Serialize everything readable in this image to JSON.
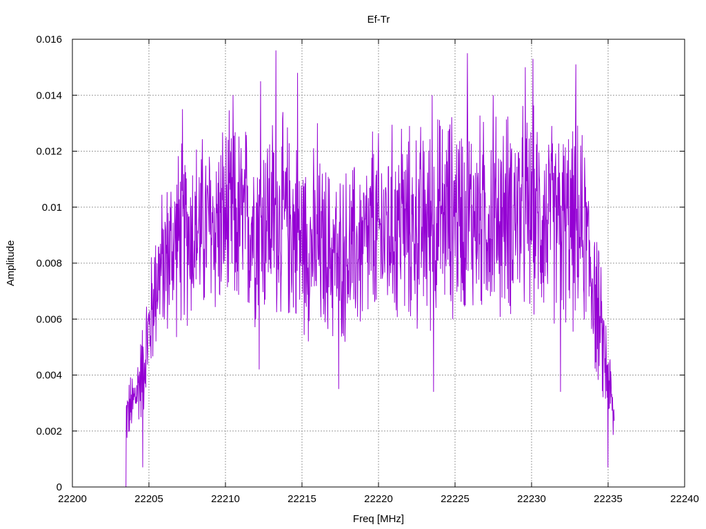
{
  "chart_data": {
    "type": "line",
    "title": "Ef-Tr",
    "xlabel": "Freq [MHz]",
    "ylabel": "Amplitude",
    "xlim": [
      22200,
      22240
    ],
    "ylim": [
      0,
      0.016
    ],
    "x_ticks": [
      "22200",
      "22205",
      "22210",
      "22215",
      "22220",
      "22225",
      "22230",
      "22235",
      "22240"
    ],
    "y_ticks": [
      "0",
      "0.002",
      "0.004",
      "0.006",
      "0.008",
      "0.01",
      "0.012",
      "0.014",
      "0.016"
    ],
    "grid": true,
    "legend": false,
    "series": [
      {
        "color": "#9400d3",
        "envelope_x": [
          22203.5,
          22204.0,
          22204.5,
          22205.0,
          22205.5,
          22206.0,
          22206.5,
          22207.0,
          22208.0,
          22209.0,
          22210.0,
          22211.0,
          22212.0,
          22213.0,
          22214.0,
          22215.0,
          22216.0,
          22217.0,
          22218.0,
          22219.0,
          22220.0,
          22221.0,
          22222.0,
          22223.0,
          22224.0,
          22225.0,
          22226.0,
          22227.0,
          22228.0,
          22229.0,
          22230.0,
          22231.0,
          22232.0,
          22233.0,
          22233.5,
          22234.0,
          22234.5,
          22235.0,
          22235.4
        ],
        "envelope_center": [
          0.0025,
          0.003,
          0.004,
          0.0055,
          0.0075,
          0.008,
          0.0085,
          0.009,
          0.0092,
          0.0093,
          0.0095,
          0.0094,
          0.0095,
          0.0097,
          0.0095,
          0.0088,
          0.0085,
          0.0083,
          0.0083,
          0.0086,
          0.009,
          0.0093,
          0.0092,
          0.0093,
          0.0096,
          0.0098,
          0.0097,
          0.0096,
          0.0097,
          0.0099,
          0.0097,
          0.0095,
          0.0094,
          0.0092,
          0.009,
          0.0075,
          0.0055,
          0.004,
          0.0022
        ],
        "envelope_spread": [
          0.001,
          0.0012,
          0.0015,
          0.002,
          0.0022,
          0.0025,
          0.0028,
          0.003,
          0.003,
          0.003,
          0.0032,
          0.0032,
          0.0033,
          0.0033,
          0.0032,
          0.003,
          0.003,
          0.0028,
          0.0028,
          0.003,
          0.0032,
          0.0032,
          0.0032,
          0.0033,
          0.0033,
          0.0033,
          0.0033,
          0.0032,
          0.0033,
          0.0033,
          0.0033,
          0.0032,
          0.0032,
          0.0033,
          0.003,
          0.0028,
          0.0022,
          0.0015,
          0.001
        ],
        "peaks": [
          [
            22203.5,
            0.0
          ],
          [
            22207.2,
            0.0135
          ],
          [
            22210.5,
            0.014
          ],
          [
            22212.3,
            0.0145
          ],
          [
            22213.3,
            0.0156
          ],
          [
            22214.7,
            0.0148
          ],
          [
            22216.0,
            0.013
          ],
          [
            22219.6,
            0.0127
          ],
          [
            22221.5,
            0.0128
          ],
          [
            22223.5,
            0.014
          ],
          [
            22225.8,
            0.0155
          ],
          [
            22227.5,
            0.014
          ],
          [
            22229.6,
            0.015
          ],
          [
            22230.1,
            0.0153
          ],
          [
            22232.9,
            0.0151
          ],
          [
            22204.6,
            0.0007
          ],
          [
            22212.2,
            0.0042
          ],
          [
            22217.4,
            0.0035
          ],
          [
            22223.6,
            0.0034
          ],
          [
            22231.9,
            0.0034
          ],
          [
            22235.0,
            0.0007
          ]
        ]
      }
    ]
  }
}
